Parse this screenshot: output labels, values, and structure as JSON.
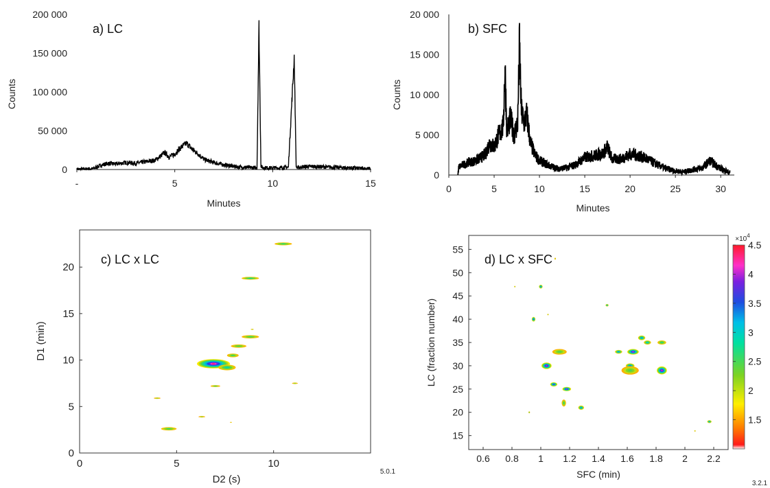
{
  "chart_data": [
    {
      "id": "a",
      "type": "line",
      "title": "a) LC",
      "xlabel": "Minutes",
      "ylabel": "Counts",
      "xlim": [
        0,
        15
      ],
      "ylim": [
        0,
        200000
      ],
      "xticks": [
        {
          "v": 0,
          "label": "-"
        },
        {
          "v": 5,
          "label": "5"
        },
        {
          "v": 10,
          "label": "10"
        },
        {
          "v": 15,
          "label": "15"
        }
      ],
      "yticks": [
        {
          "v": 0,
          "label": "0"
        },
        {
          "v": 50000,
          "label": "50 000"
        },
        {
          "v": 100000,
          "label": "100 000"
        },
        {
          "v": 150000,
          "label": "150 000"
        },
        {
          "v": 200000,
          "label": "200 000"
        }
      ],
      "series": [
        {
          "x": [
            0,
            0.8,
            1.0,
            1.3,
            1.6,
            2.0,
            2.5,
            3.0,
            3.5,
            4.0,
            4.3,
            4.5,
            4.7,
            5.0,
            5.3,
            5.6,
            5.9,
            6.2,
            6.5,
            7.0,
            7.5,
            8.0,
            8.5,
            9.0,
            9.2,
            9.3,
            9.4,
            9.5,
            9.8,
            10.2,
            10.8,
            11.1,
            11.2,
            11.3,
            11.5,
            12.0,
            13.0,
            14.0,
            15.0
          ],
          "y": [
            0,
            1000,
            3000,
            6000,
            8000,
            7000,
            9000,
            8000,
            10000,
            12000,
            18000,
            22000,
            16000,
            20000,
            28000,
            34000,
            26000,
            20000,
            13000,
            9000,
            6000,
            4000,
            3000,
            2500,
            2000,
            185000,
            4000,
            2500,
            2000,
            2000,
            3000,
            145000,
            3000,
            2500,
            3500,
            4000,
            3000,
            2000,
            1000
          ]
        }
      ]
    },
    {
      "id": "b",
      "type": "line",
      "title": "b) SFC",
      "xlabel": "Minutes",
      "ylabel": "Counts",
      "xlim": [
        0,
        31.5
      ],
      "ylim": [
        0,
        20000
      ],
      "xticks": [
        {
          "v": 0,
          "label": "0"
        },
        {
          "v": 5,
          "label": "5"
        },
        {
          "v": 10,
          "label": "10"
        },
        {
          "v": 15,
          "label": "15"
        },
        {
          "v": 20,
          "label": "20"
        },
        {
          "v": 25,
          "label": "25"
        },
        {
          "v": 30,
          "label": "30"
        }
      ],
      "yticks": [
        {
          "v": 0,
          "label": "0"
        },
        {
          "v": 5000,
          "label": "5 000"
        },
        {
          "v": 10000,
          "label": "10 000"
        },
        {
          "v": 15000,
          "label": "15 000"
        },
        {
          "v": 20000,
          "label": "20 000"
        }
      ],
      "series": [
        {
          "x": [
            1.0,
            1.1,
            2.0,
            3.0,
            4.0,
            4.5,
            5.0,
            5.5,
            6.0,
            6.2,
            6.4,
            6.8,
            7.2,
            7.6,
            7.8,
            8.0,
            8.3,
            8.6,
            9.0,
            9.5,
            10.0,
            11.0,
            12.0,
            13.0,
            14.0,
            15.0,
            16.0,
            17.0,
            17.5,
            18.0,
            19.0,
            20.0,
            21.0,
            22.0,
            23.0,
            24.0,
            25.0,
            26.0,
            27.0,
            28.0,
            28.8,
            29.5,
            30.0,
            31.0
          ],
          "y": [
            0,
            1000,
            1500,
            1800,
            2500,
            4000,
            3500,
            5000,
            6000,
            13500,
            5500,
            7000,
            5000,
            6500,
            16000,
            8000,
            6500,
            7500,
            4000,
            2500,
            1800,
            1200,
            800,
            900,
            1300,
            2200,
            2400,
            2700,
            3500,
            2000,
            2000,
            2600,
            2400,
            1900,
            1300,
            800,
            500,
            400,
            700,
            900,
            1800,
            1200,
            800,
            300
          ]
        }
      ]
    },
    {
      "id": "c",
      "type": "heatmap",
      "title": "c) LC x LC",
      "xlabel": "D2 (s)",
      "ylabel": "D1 (min)",
      "xlim": [
        0,
        15
      ],
      "ylim": [
        0,
        24
      ],
      "xticks": [
        0,
        5,
        10
      ],
      "yticks": [
        0,
        5,
        10,
        15,
        20
      ],
      "footnote": "5.0.1",
      "spots": [
        {
          "x": 10.5,
          "y": 22.5,
          "w": 0.9,
          "h": 0.3,
          "i": 0.35
        },
        {
          "x": 8.8,
          "y": 18.8,
          "w": 0.9,
          "h": 0.3,
          "i": 0.4
        },
        {
          "x": 8.9,
          "y": 13.3,
          "w": 0.15,
          "h": 0.1,
          "i": 0.1
        },
        {
          "x": 8.8,
          "y": 12.5,
          "w": 0.9,
          "h": 0.35,
          "i": 0.3
        },
        {
          "x": 8.2,
          "y": 11.5,
          "w": 0.8,
          "h": 0.35,
          "i": 0.28
        },
        {
          "x": 7.9,
          "y": 10.5,
          "w": 0.6,
          "h": 0.4,
          "i": 0.3
        },
        {
          "x": 6.9,
          "y": 9.6,
          "w": 1.7,
          "h": 1.0,
          "i": 1.0
        },
        {
          "x": 7.6,
          "y": 9.2,
          "w": 0.9,
          "h": 0.6,
          "i": 0.4
        },
        {
          "x": 7.0,
          "y": 7.2,
          "w": 0.5,
          "h": 0.2,
          "i": 0.25
        },
        {
          "x": 11.1,
          "y": 7.5,
          "w": 0.3,
          "h": 0.15,
          "i": 0.15
        },
        {
          "x": 4.0,
          "y": 5.9,
          "w": 0.35,
          "h": 0.15,
          "i": 0.15
        },
        {
          "x": 6.3,
          "y": 3.9,
          "w": 0.35,
          "h": 0.15,
          "i": 0.15
        },
        {
          "x": 4.6,
          "y": 2.6,
          "w": 0.8,
          "h": 0.35,
          "i": 0.32
        },
        {
          "x": 7.8,
          "y": 3.3,
          "w": 0.1,
          "h": 0.08,
          "i": 0.05
        }
      ]
    },
    {
      "id": "d",
      "type": "heatmap",
      "title": "d) LC x SFC",
      "xlabel": "SFC (min)",
      "ylabel": "LC (fraction number)",
      "xlim": [
        0.5,
        2.3
      ],
      "ylim": [
        12,
        58
      ],
      "xticks": [
        0.6,
        0.8,
        1,
        1.2,
        1.4,
        1.6,
        1.8,
        2,
        2.2
      ],
      "yticks": [
        15,
        20,
        25,
        30,
        35,
        40,
        45,
        50,
        55
      ],
      "footnote": "3.2.1",
      "colorbar": {
        "ticks": [
          1.5,
          2,
          2.5,
          3,
          3.5,
          4,
          4.5
        ],
        "range": [
          1.0,
          4.5
        ],
        "multiplier": "×10",
        "exponent": "4"
      },
      "spots": [
        {
          "x": 1.0,
          "y": 47.0,
          "w": 0.025,
          "h": 0.8,
          "i": 0.6
        },
        {
          "x": 0.95,
          "y": 40.0,
          "w": 0.025,
          "h": 1.0,
          "i": 0.7
        },
        {
          "x": 1.1,
          "y": 53.0,
          "w": 0.01,
          "h": 0.4,
          "i": 0.1
        },
        {
          "x": 0.82,
          "y": 47.0,
          "w": 0.01,
          "h": 0.3,
          "i": 0.1
        },
        {
          "x": 1.46,
          "y": 43.0,
          "w": 0.02,
          "h": 0.5,
          "i": 0.5
        },
        {
          "x": 1.13,
          "y": 33.0,
          "w": 0.1,
          "h": 1.2,
          "i": 0.25
        },
        {
          "x": 1.04,
          "y": 30.0,
          "w": 0.07,
          "h": 1.4,
          "i": 0.95
        },
        {
          "x": 1.09,
          "y": 26.0,
          "w": 0.05,
          "h": 0.9,
          "i": 0.8
        },
        {
          "x": 1.18,
          "y": 25.0,
          "w": 0.06,
          "h": 0.9,
          "i": 0.9
        },
        {
          "x": 1.16,
          "y": 22.0,
          "w": 0.03,
          "h": 1.5,
          "i": 0.3
        },
        {
          "x": 1.28,
          "y": 21.0,
          "w": 0.04,
          "h": 0.9,
          "i": 0.6
        },
        {
          "x": 0.92,
          "y": 20.0,
          "w": 0.01,
          "h": 0.4,
          "i": 0.2
        },
        {
          "x": 1.54,
          "y": 33.0,
          "w": 0.05,
          "h": 0.8,
          "i": 0.6
        },
        {
          "x": 1.64,
          "y": 33.0,
          "w": 0.08,
          "h": 1.2,
          "i": 0.9
        },
        {
          "x": 1.7,
          "y": 36.0,
          "w": 0.05,
          "h": 1.0,
          "i": 0.6
        },
        {
          "x": 1.74,
          "y": 35.0,
          "w": 0.05,
          "h": 0.9,
          "i": 0.5
        },
        {
          "x": 1.84,
          "y": 35.0,
          "w": 0.06,
          "h": 0.9,
          "i": 0.35
        },
        {
          "x": 1.62,
          "y": 30.0,
          "w": 0.06,
          "h": 1.0,
          "i": 0.65
        },
        {
          "x": 1.84,
          "y": 29.0,
          "w": 0.07,
          "h": 1.7,
          "i": 0.95
        },
        {
          "x": 1.62,
          "y": 29.0,
          "w": 0.12,
          "h": 1.8,
          "i": 0.25
        },
        {
          "x": 2.17,
          "y": 18.0,
          "w": 0.03,
          "h": 0.6,
          "i": 0.55
        },
        {
          "x": 2.07,
          "y": 16.0,
          "w": 0.01,
          "h": 0.3,
          "i": 0.08
        },
        {
          "x": 1.05,
          "y": 41.0,
          "w": 0.01,
          "h": 0.3,
          "i": 0.1
        }
      ]
    }
  ]
}
